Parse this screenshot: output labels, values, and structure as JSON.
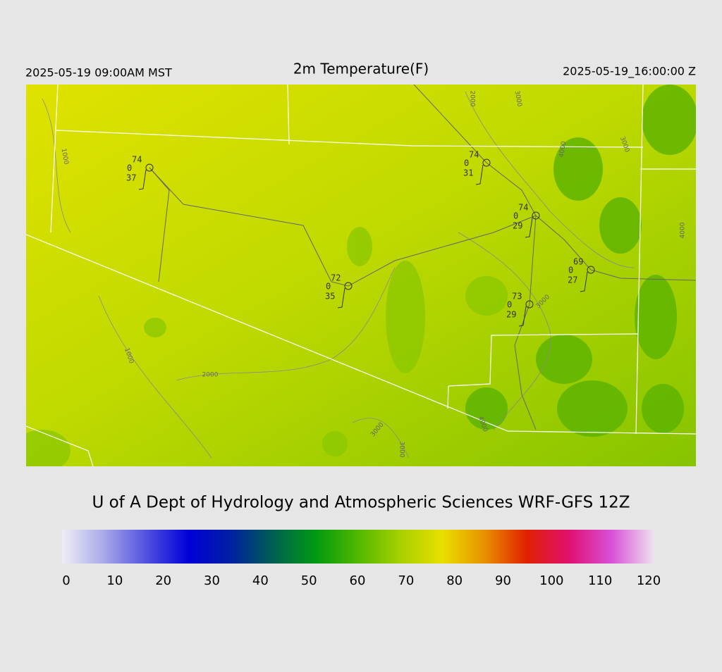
{
  "header": {
    "valid_local": "2025-05-19 09:00AM MST",
    "title": "2m Temperature(F)",
    "valid_utc": "2025-05-19_16:00:00 Z"
  },
  "stations": [
    {
      "temp": 74,
      "wind": 0,
      "dewpoint": 37
    },
    {
      "temp": 74,
      "wind": 0,
      "dewpoint": 31
    },
    {
      "temp": 74,
      "wind": 0,
      "dewpoint": 29
    },
    {
      "temp": 69,
      "wind": 0,
      "dewpoint": 27
    },
    {
      "temp": 72,
      "wind": 0,
      "dewpoint": 35
    },
    {
      "temp": 73,
      "wind": 0,
      "dewpoint": 29
    }
  ],
  "contour_labels": [
    1000,
    2000,
    3000,
    4000,
    3000,
    4000,
    3000,
    1000,
    2000,
    3000,
    3000,
    4000
  ],
  "credit": "U of A Dept of Hydrology and Atmospheric Sciences WRF-GFS 12Z",
  "colorbar": {
    "lim": [
      0,
      120
    ],
    "ticks": [
      0,
      10,
      20,
      30,
      40,
      50,
      60,
      70,
      80,
      90,
      100,
      110,
      120
    ],
    "colors": [
      "#eeeef6",
      "#a8a8e8",
      "#5050e0",
      "#0000d8",
      "#0020a0",
      "#006050",
      "#009a10",
      "#50b800",
      "#a8d000",
      "#e8e000",
      "#e89000",
      "#e02000",
      "#e01070",
      "#d850d8",
      "#eee0ee"
    ]
  }
}
